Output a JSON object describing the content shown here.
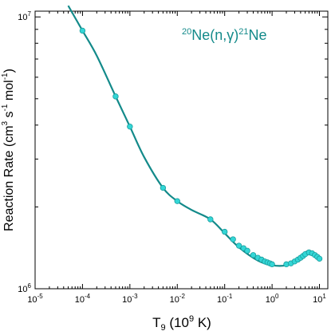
{
  "chart_data": {
    "type": "scatter",
    "title": {
      "pre": "20",
      "mid": "Ne(n,γ)",
      "sup2": "21",
      "post": "Ne"
    },
    "xlabel": {
      "base": "T",
      "sub": "9",
      "rest": " (10",
      "sup": "9",
      "end": " K)"
    },
    "ylabel": {
      "a": "Reaction Rate (cm",
      "sup1": "3",
      "b": " s",
      "sup2": "-1",
      "c": " mol",
      "sup3": "-1",
      "d": ")"
    },
    "x_scale": "log",
    "y_scale": "log",
    "xlim": [
      1e-05,
      15
    ],
    "ylim": [
      1000000,
      10500000
    ],
    "x_ticks": [
      {
        "value": 1e-05,
        "base": "10",
        "exp": "-5"
      },
      {
        "value": 0.0001,
        "base": "10",
        "exp": "-4"
      },
      {
        "value": 0.001,
        "base": "10",
        "exp": "-3"
      },
      {
        "value": 0.01,
        "base": "10",
        "exp": "-2"
      },
      {
        "value": 0.1,
        "base": "10",
        "exp": "-1"
      },
      {
        "value": 1,
        "base": "10",
        "exp": "0"
      },
      {
        "value": 10,
        "base": "10",
        "exp": "1"
      }
    ],
    "y_ticks": [
      {
        "value": 1000000,
        "base": "10",
        "exp": "6"
      },
      {
        "value": 10000000,
        "base": "10",
        "exp": "7"
      }
    ],
    "colors": {
      "line": "#138a8a",
      "marker_fill": "#33d6d6",
      "marker_edge": "#1a9e9e",
      "title": "#138a8a"
    },
    "series": [
      {
        "kind": "line",
        "x": [
          5e-05,
          0.0001,
          0.0002,
          0.0005,
          0.001,
          0.002,
          0.005,
          0.01,
          0.02,
          0.05,
          0.1,
          0.2,
          0.5,
          1,
          2,
          3,
          5,
          6,
          8,
          10
        ],
        "y": [
          11000000,
          8900000,
          7200000,
          5100000,
          3950000,
          3050000,
          2350000,
          2100000,
          1950000,
          1800000,
          1600000,
          1420000,
          1270000,
          1220000,
          1220000,
          1270000,
          1360000,
          1370000,
          1330000,
          1290000
        ]
      },
      {
        "kind": "scatter",
        "x": [
          0.0001,
          0.0005,
          0.001,
          0.005,
          0.01,
          0.05,
          0.1,
          0.15,
          0.2,
          0.25,
          0.3,
          0.4,
          0.5,
          0.6,
          0.7,
          0.8,
          0.9,
          1.0,
          2.0,
          2.5,
          3.0,
          3.5,
          4.0,
          4.5,
          5.0,
          6.0,
          7.0,
          8.0,
          9.0,
          10.0
        ],
        "y": [
          8900000,
          5100000,
          3950000,
          2350000,
          2100000,
          1800000,
          1620000,
          1520000,
          1440000,
          1410000,
          1380000,
          1330000,
          1300000,
          1280000,
          1260000,
          1250000,
          1240000,
          1230000,
          1230000,
          1240000,
          1260000,
          1280000,
          1300000,
          1320000,
          1340000,
          1360000,
          1350000,
          1330000,
          1310000,
          1290000
        ]
      }
    ]
  }
}
